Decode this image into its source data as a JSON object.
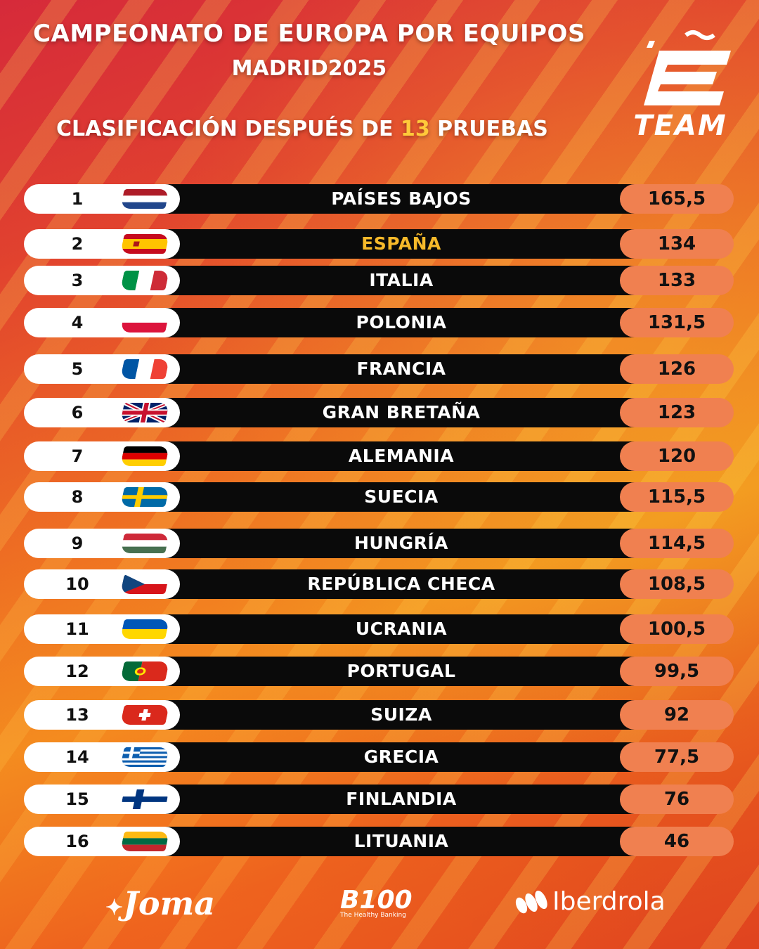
{
  "header": {
    "title": "CAMPEONATO DE EUROPA POR EQUIPOS",
    "subtitle": "MADRID2025",
    "classification_prefix": "CLASIFICACIÓN DESPUÉS DE ",
    "classification_number": "13",
    "classification_suffix": " PRUEBAS"
  },
  "logo": {
    "text": "TEAM",
    "icon": "e-team-logo"
  },
  "colors": {
    "bar": "#0a0a0a",
    "points_pill": "#f08050",
    "highlight": "#f6b92a",
    "number_accent": "#ffc93a"
  },
  "standings": [
    {
      "rank": "1",
      "country": "PAÍSES BAJOS",
      "points": "165,5",
      "flag": "flag-netherlands"
    },
    {
      "rank": "2",
      "country": "ESPAÑA",
      "points": "134",
      "flag": "flag-spain",
      "highlight": true
    },
    {
      "rank": "3",
      "country": "ITALIA",
      "points": "133",
      "flag": "flag-italy"
    },
    {
      "rank": "4",
      "country": "POLONIA",
      "points": "131,5",
      "flag": "flag-poland"
    },
    {
      "rank": "5",
      "country": "FRANCIA",
      "points": "126",
      "flag": "flag-france"
    },
    {
      "rank": "6",
      "country": "GRAN BRETAÑA",
      "points": "123",
      "flag": "flag-great-britain"
    },
    {
      "rank": "7",
      "country": "ALEMANIA",
      "points": "120",
      "flag": "flag-germany"
    },
    {
      "rank": "8",
      "country": "SUECIA",
      "points": "115,5",
      "flag": "flag-sweden"
    },
    {
      "rank": "9",
      "country": "HUNGRÍA",
      "points": "114,5",
      "flag": "flag-hungary"
    },
    {
      "rank": "10",
      "country": "REPÚBLICA CHECA",
      "points": "108,5",
      "flag": "flag-czechia"
    },
    {
      "rank": "11",
      "country": "UCRANIA",
      "points": "100,5",
      "flag": "flag-ukraine"
    },
    {
      "rank": "12",
      "country": "PORTUGAL",
      "points": "99,5",
      "flag": "flag-portugal"
    },
    {
      "rank": "13",
      "country": "SUIZA",
      "points": "92",
      "flag": "flag-switzerland"
    },
    {
      "rank": "14",
      "country": "GRECIA",
      "points": "77,5",
      "flag": "flag-greece"
    },
    {
      "rank": "15",
      "country": "FINLANDIA",
      "points": "76",
      "flag": "flag-finland"
    },
    {
      "rank": "16",
      "country": "LITUANIA",
      "points": "46",
      "flag": "flag-lithuania"
    }
  ],
  "sponsors": {
    "joma": "Joma",
    "b100": "B100",
    "b100_tagline": "The Healthy Banking",
    "iberdrola": "Iberdrola"
  }
}
